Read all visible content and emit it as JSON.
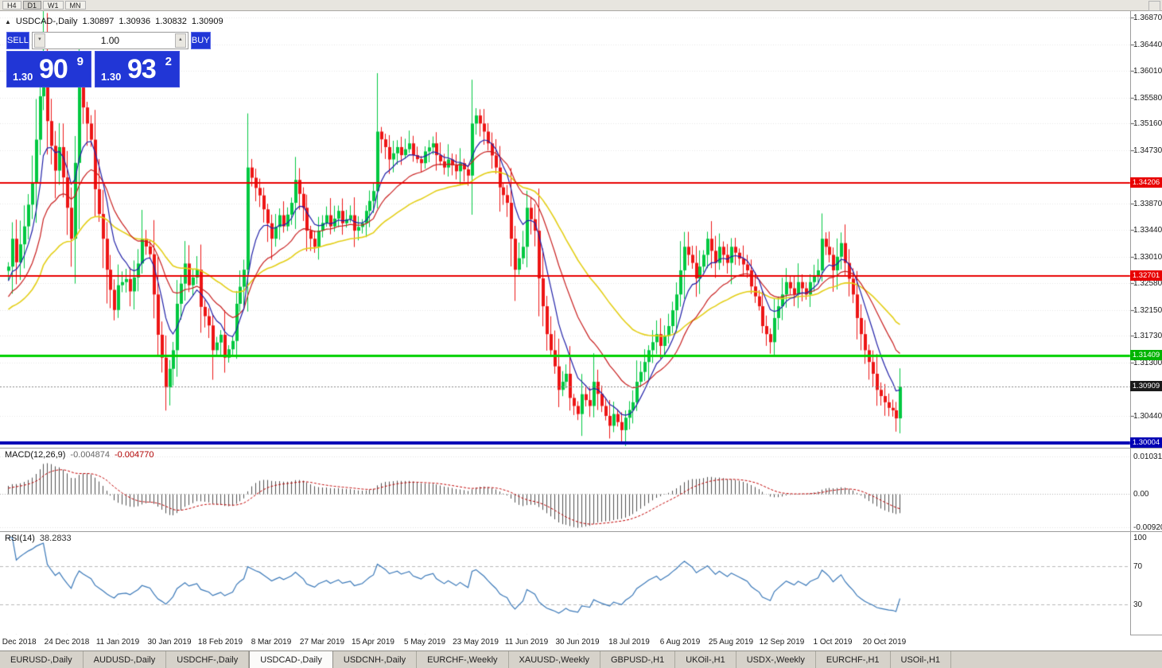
{
  "toolbar": {
    "periods": [
      "H4",
      "D1",
      "W1",
      "MN"
    ],
    "active_period": "D1"
  },
  "chart_header": {
    "symbol": "USDCAD-,Daily",
    "open": "1.30897",
    "high": "1.30936",
    "low": "1.30832",
    "close": "1.30909"
  },
  "trade_panel": {
    "sell_label": "SELL",
    "buy_label": "BUY",
    "volume": "1.00",
    "sell_price_small": "1.30",
    "sell_price_big": "90",
    "sell_price_sup": "9",
    "buy_price_small": "1.30",
    "buy_price_big": "93",
    "buy_price_sup": "2"
  },
  "price_axis": {
    "labels": [
      "1.36870",
      "1.36440",
      "1.36010",
      "1.35580",
      "1.35160",
      "1.34730",
      "1.33870",
      "1.33440",
      "1.33010",
      "1.32580",
      "1.32150",
      "1.31730",
      "1.31300",
      "1.30440"
    ],
    "badges": [
      {
        "text": "1.34206",
        "price": 1.34206,
        "bg": "#e80000"
      },
      {
        "text": "1.32701",
        "price": 1.32701,
        "bg": "#e80000"
      },
      {
        "text": "1.31409",
        "price": 1.31409,
        "bg": "#00b400"
      },
      {
        "text": "1.30909",
        "price": 1.30909,
        "bg": "#1a1a1a"
      },
      {
        "text": "1.30004",
        "price": 1.30004,
        "bg": "#0000b4"
      }
    ]
  },
  "hlines": [
    {
      "price": 1.34206,
      "color": "#e80000",
      "width": 2,
      "style": "solid"
    },
    {
      "price": 1.32701,
      "color": "#e80000",
      "width": 2,
      "style": "solid"
    },
    {
      "price": 1.31409,
      "color": "#00d000",
      "width": 3,
      "style": "solid"
    },
    {
      "price": 1.30004,
      "color": "#0000b4",
      "width": 4,
      "style": "solid"
    },
    {
      "price": 1.30909,
      "color": "#8a8a8a",
      "width": 1,
      "style": "dotted"
    }
  ],
  "macd": {
    "label": "MACD(12,26,9)",
    "value_main": "-0.004874",
    "value_signal": "-0.004770",
    "axis_labels": [
      "0.010311",
      "0.00",
      "-0.009203"
    ],
    "axis_values": [
      0.010311,
      0,
      -0.009203
    ]
  },
  "rsi": {
    "label": "RSI(14)",
    "value": "38.2833",
    "axis_labels": [
      "100",
      "70",
      "30"
    ],
    "axis_values": [
      100,
      70,
      30
    ],
    "levels": [
      70,
      30
    ]
  },
  "dates": {
    "labels": [
      "5 Dec 2018",
      "24 Dec 2018",
      "11 Jan 2019",
      "30 Jan 2019",
      "18 Feb 2019",
      "8 Mar 2019",
      "27 Mar 2019",
      "15 Apr 2019",
      "5 May 2019",
      "23 May 2019",
      "11 Jun 2019",
      "30 Jun 2019",
      "18 Jul 2019",
      "6 Aug 2019",
      "25 Aug 2019",
      "12 Sep 2019",
      "1 Oct 2019",
      "20 Oct 2019"
    ],
    "tick_bars": [
      2,
      15,
      28,
      41,
      54,
      67,
      80,
      93,
      106,
      119,
      132,
      145,
      158,
      171,
      184,
      197,
      210,
      223
    ]
  },
  "tabs": {
    "items": [
      "EURUSD-,Daily",
      "AUDUSD-,Daily",
      "USDCHF-,Daily",
      "USDCAD-,Daily",
      "USDCNH-,Daily",
      "EURCHF-,Weekly",
      "XAUUSD-,Weekly",
      "GBPUSD-,H1",
      "UKOil-,H1",
      "USDX-,Weekly",
      "EURCHF-,H1",
      "USOil-,H1"
    ],
    "active_index": 3
  },
  "chart_data": {
    "type": "candlestick",
    "symbol": "USDCAD",
    "timeframe": "Daily",
    "current": {
      "open": 1.30897,
      "high": 1.30936,
      "low": 1.30832,
      "close": 1.30909
    },
    "bars": 228,
    "price_axis": {
      "top": 1.36975,
      "bottom": 1.29926
    },
    "candle_up": "#00c840",
    "candle_down": "#ed1515",
    "ma": {
      "fast": {
        "period": 8,
        "color": "#2020a8"
      },
      "mid": {
        "period": 20,
        "color": "#c81e1e"
      },
      "slow": {
        "period": 45,
        "color": "#e3ce16"
      }
    },
    "macd_params": [
      12,
      26,
      9
    ],
    "rsi_period": 14,
    "close_path": [
      [
        0,
        1.3285
      ],
      [
        1,
        1.333
      ],
      [
        2,
        1.3292
      ],
      [
        4,
        1.335
      ],
      [
        6,
        1.342
      ],
      [
        8,
        1.356
      ],
      [
        9,
        1.363
      ],
      [
        10,
        1.352
      ],
      [
        12,
        1.344
      ],
      [
        13,
        1.3478
      ],
      [
        15,
        1.338
      ],
      [
        16,
        1.333
      ],
      [
        18,
        1.3575
      ],
      [
        19,
        1.3542
      ],
      [
        21,
        1.349
      ],
      [
        22,
        1.341
      ],
      [
        24,
        1.333
      ],
      [
        25,
        1.328
      ],
      [
        27,
        1.3215
      ],
      [
        28,
        1.3255
      ],
      [
        30,
        1.3265
      ],
      [
        31,
        1.3245
      ],
      [
        33,
        1.329
      ],
      [
        34,
        1.333
      ],
      [
        36,
        1.3305
      ],
      [
        38,
        1.3175
      ],
      [
        39,
        1.3138
      ],
      [
        40,
        1.309
      ],
      [
        42,
        1.315
      ],
      [
        43,
        1.3225
      ],
      [
        45,
        1.329
      ],
      [
        46,
        1.3255
      ],
      [
        48,
        1.328
      ],
      [
        49,
        1.322
      ],
      [
        51,
        1.319
      ],
      [
        52,
        1.315
      ],
      [
        54,
        1.3175
      ],
      [
        55,
        1.3138
      ],
      [
        57,
        1.3165
      ],
      [
        58,
        1.3225
      ],
      [
        60,
        1.328
      ],
      [
        61,
        1.3445
      ],
      [
        63,
        1.3412
      ],
      [
        64,
        1.34
      ],
      [
        66,
        1.3355
      ],
      [
        67,
        1.333
      ],
      [
        69,
        1.3368
      ],
      [
        70,
        1.335
      ],
      [
        72,
        1.3388
      ],
      [
        73,
        1.3425
      ],
      [
        75,
        1.338
      ],
      [
        76,
        1.3343
      ],
      [
        78,
        1.3317
      ],
      [
        79,
        1.3343
      ],
      [
        81,
        1.3368
      ],
      [
        82,
        1.335
      ],
      [
        84,
        1.3375
      ],
      [
        85,
        1.3355
      ],
      [
        87,
        1.3368
      ],
      [
        88,
        1.3343
      ],
      [
        90,
        1.3355
      ],
      [
        91,
        1.3375
      ],
      [
        93,
        1.3407
      ],
      [
        94,
        1.3503
      ],
      [
        96,
        1.3478
      ],
      [
        97,
        1.3458
      ],
      [
        99,
        1.3478
      ],
      [
        100,
        1.3465
      ],
      [
        102,
        1.3484
      ],
      [
        103,
        1.3465
      ],
      [
        105,
        1.3452
      ],
      [
        106,
        1.3471
      ],
      [
        108,
        1.3484
      ],
      [
        109,
        1.3465
      ],
      [
        111,
        1.3445
      ],
      [
        112,
        1.3458
      ],
      [
        114,
        1.3439
      ],
      [
        115,
        1.3452
      ],
      [
        117,
        1.3432
      ],
      [
        118,
        1.3516
      ],
      [
        119,
        1.3529
      ],
      [
        121,
        1.3503
      ],
      [
        122,
        1.3484
      ],
      [
        124,
        1.3445
      ],
      [
        125,
        1.3413
      ],
      [
        127,
        1.3388
      ],
      [
        128,
        1.333
      ],
      [
        129,
        1.328
      ],
      [
        131,
        1.3317
      ],
      [
        132,
        1.338
      ],
      [
        134,
        1.3343
      ],
      [
        135,
        1.3266
      ],
      [
        137,
        1.3176
      ],
      [
        139,
        1.3124
      ],
      [
        140,
        1.3086
      ],
      [
        142,
        1.3112
      ],
      [
        143,
        1.3073
      ],
      [
        145,
        1.3047
      ],
      [
        146,
        1.3079
      ],
      [
        148,
        1.306
      ],
      [
        149,
        1.3099
      ],
      [
        151,
        1.306
      ],
      [
        153,
        1.3028
      ],
      [
        154,
        1.3047
      ],
      [
        156,
        1.3021
      ],
      [
        157,
        1.3041
      ],
      [
        159,
        1.3066
      ],
      [
        160,
        1.3099
      ],
      [
        162,
        1.3131
      ],
      [
        163,
        1.315
      ],
      [
        165,
        1.3176
      ],
      [
        166,
        1.3157
      ],
      [
        168,
        1.3189
      ],
      [
        170,
        1.324
      ],
      [
        171,
        1.3279
      ],
      [
        172,
        1.3317
      ],
      [
        174,
        1.3291
      ],
      [
        175,
        1.3266
      ],
      [
        177,
        1.3304
      ],
      [
        178,
        1.333
      ],
      [
        180,
        1.3291
      ],
      [
        181,
        1.3317
      ],
      [
        183,
        1.3291
      ],
      [
        184,
        1.3317
      ],
      [
        186,
        1.3298
      ],
      [
        188,
        1.3279
      ],
      [
        189,
        1.3253
      ],
      [
        191,
        1.3221
      ],
      [
        192,
        1.3189
      ],
      [
        194,
        1.3163
      ],
      [
        195,
        1.3202
      ],
      [
        197,
        1.324
      ],
      [
        198,
        1.326
      ],
      [
        200,
        1.324
      ],
      [
        201,
        1.326
      ],
      [
        203,
        1.324
      ],
      [
        204,
        1.326
      ],
      [
        206,
        1.3279
      ],
      [
        207,
        1.333
      ],
      [
        209,
        1.3304
      ],
      [
        210,
        1.3279
      ],
      [
        212,
        1.3323
      ],
      [
        213,
        1.3291
      ],
      [
        215,
        1.324
      ],
      [
        216,
        1.3202
      ],
      [
        218,
        1.315
      ],
      [
        220,
        1.3112
      ],
      [
        221,
        1.3086
      ],
      [
        223,
        1.3066
      ],
      [
        224,
        1.3057
      ],
      [
        225,
        1.3053
      ],
      [
        226,
        1.304
      ],
      [
        227,
        1.30909
      ]
    ]
  }
}
